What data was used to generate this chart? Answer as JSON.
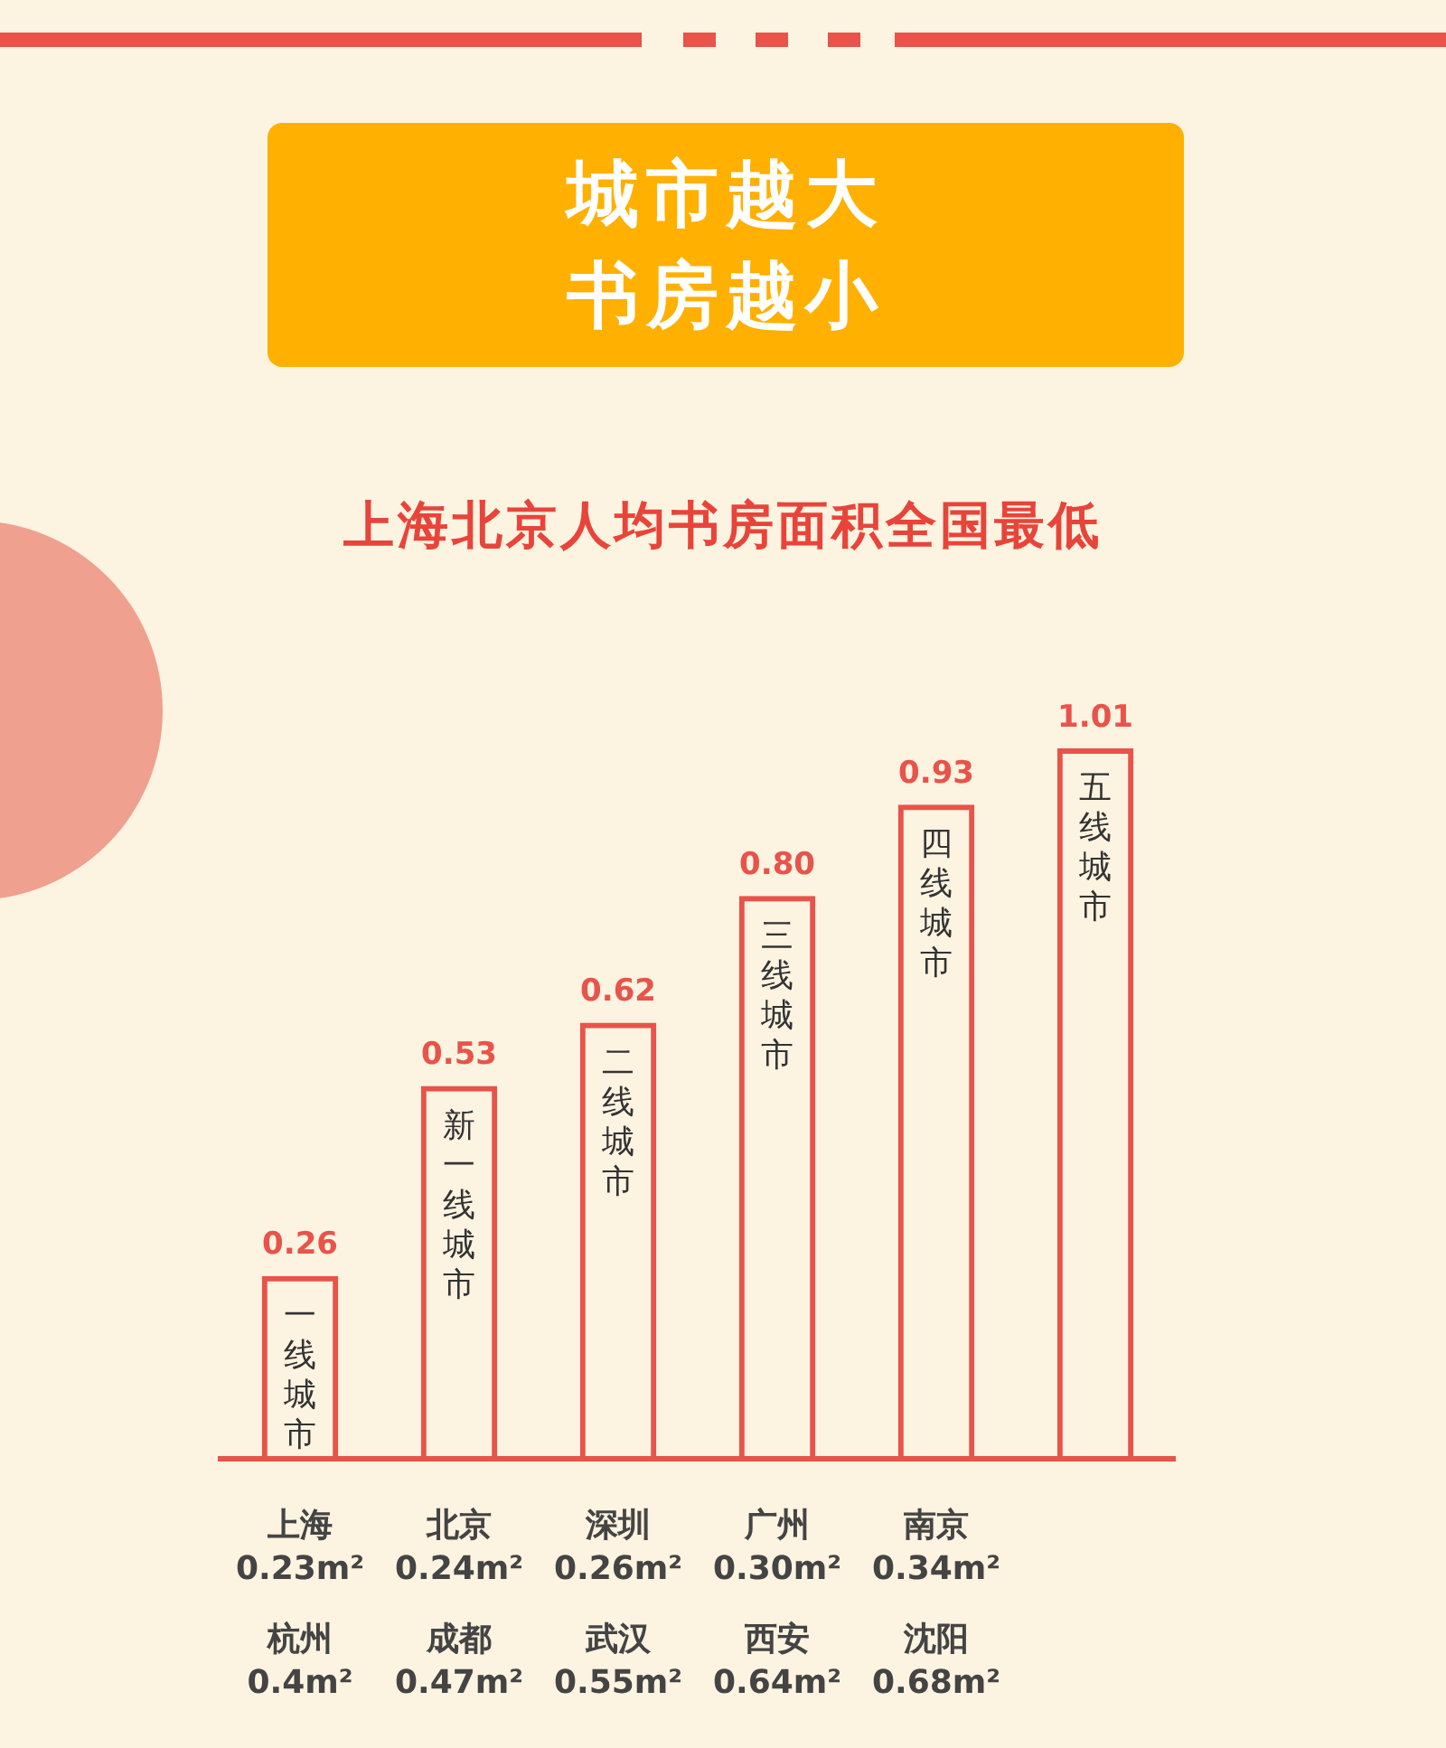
{
  "chart_data": {
    "type": "bar",
    "title": "城市越大书房越小",
    "subtitle": "上海北京人均书房面积全国最低",
    "categories": [
      "一线城市",
      "新一线城市",
      "二线城市",
      "三线城市",
      "四线城市",
      "五线城市"
    ],
    "values": [
      0.26,
      0.53,
      0.62,
      0.8,
      0.93,
      1.01
    ],
    "value_labels": [
      "0.26",
      "0.53",
      "0.62",
      "0.80",
      "0.93",
      "1.01"
    ],
    "color": "#e8534a",
    "annotations": [
      "上海\n0.23m²\n杭州\n0.4m²",
      "北京\n0.24m²\n成都\n0.47m²",
      "深圳\n0.26m²\n武汉\n0.55m²",
      "广州\n0.30m²\n西安\n0.64m²",
      "南京\n0.34m²\n沈阳\n0.68m²"
    ]
  }
}
